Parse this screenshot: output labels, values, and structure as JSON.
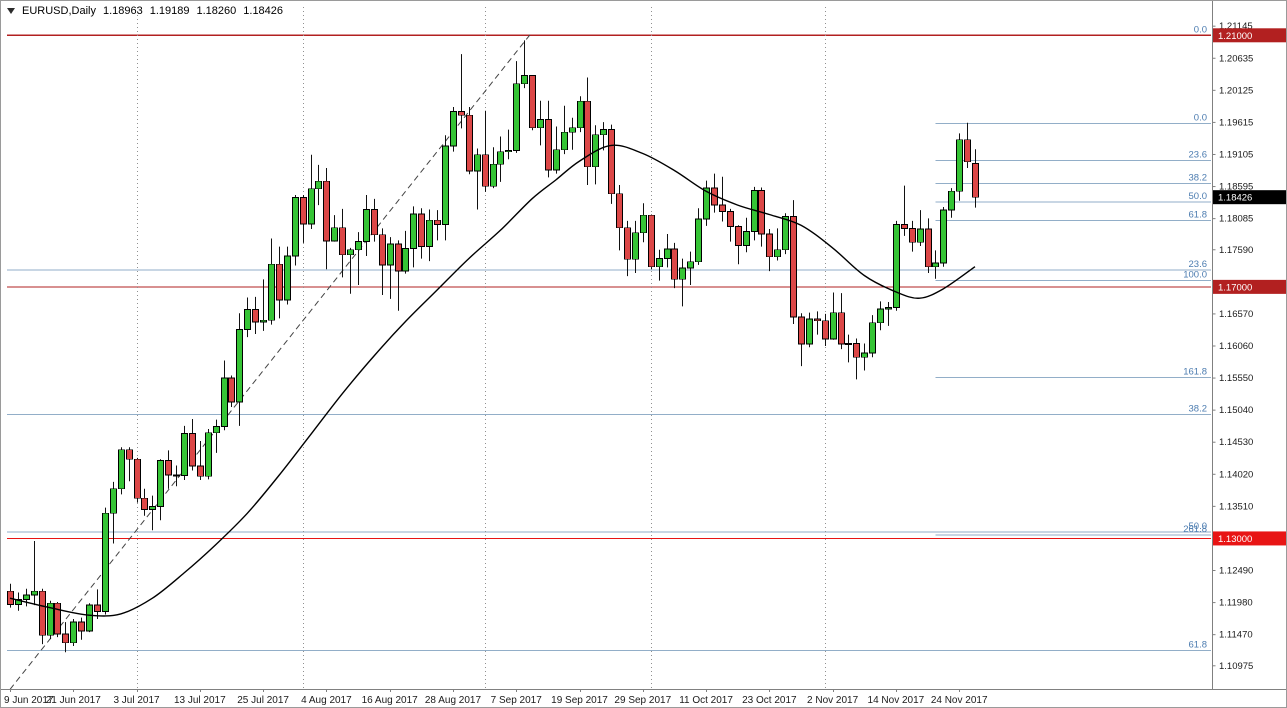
{
  "title": {
    "symbol_period": "EURUSD,Daily",
    "open": "1.18963",
    "high": "1.19189",
    "low": "1.18260",
    "close": "1.18426"
  },
  "colors": {
    "up": "#35C435",
    "down": "#DC4747",
    "wick": "#111111",
    "body_stroke": "#000000",
    "ma": "#000000",
    "fib_line": "#92AEC8",
    "fib_label": "#4C7CB0",
    "trendline": "#444444",
    "separator": "#909090",
    "axis_line": "#808080",
    "axis_text": "#1a1a1a",
    "tag_fg": "#FFFFFF"
  },
  "y_axis": {
    "labels": [
      {
        "text": "1.21145",
        "price": 1.21145
      },
      {
        "text": "1.20635",
        "price": 1.20635
      },
      {
        "text": "1.20125",
        "price": 1.20125
      },
      {
        "text": "1.19615",
        "price": 1.19615
      },
      {
        "text": "1.19105",
        "price": 1.19105
      },
      {
        "text": "1.18595",
        "price": 1.18595
      },
      {
        "text": "1.18085",
        "price": 1.18085
      },
      {
        "text": "1.17590",
        "price": 1.1759
      },
      {
        "text": "1.16570",
        "price": 1.1657
      },
      {
        "text": "1.16060",
        "price": 1.1606
      },
      {
        "text": "1.15550",
        "price": 1.1555
      },
      {
        "text": "1.15040",
        "price": 1.1504
      },
      {
        "text": "1.14530",
        "price": 1.1453
      },
      {
        "text": "1.14020",
        "price": 1.1402
      },
      {
        "text": "1.13510",
        "price": 1.1351
      },
      {
        "text": "1.12490",
        "price": 1.1249
      },
      {
        "text": "1.11980",
        "price": 1.1198
      },
      {
        "text": "1.11470",
        "price": 1.1147
      },
      {
        "text": "1.10975",
        "price": 1.10975
      }
    ]
  },
  "price_tags": [
    {
      "text": "1.21000",
      "price": 1.21,
      "bg": "#B22020"
    },
    {
      "text": "1.18426",
      "price": 1.18426,
      "bg": "#000000"
    },
    {
      "text": "1.17000",
      "price": 1.17,
      "bg": "#B22020"
    },
    {
      "text": "1.13000",
      "price": 1.13,
      "bg": "#E81414"
    }
  ],
  "x_axis": {
    "labels": [
      {
        "text": "9 Jun 2017",
        "index": 0
      },
      {
        "text": "21 Jun 2017",
        "index": 8
      },
      {
        "text": "3 Jul 2017",
        "index": 16
      },
      {
        "text": "13 Jul 2017",
        "index": 24
      },
      {
        "text": "25 Jul 2017",
        "index": 32
      },
      {
        "text": "4 Aug 2017",
        "index": 40
      },
      {
        "text": "16 Aug 2017",
        "index": 48
      },
      {
        "text": "28 Aug 2017",
        "index": 56
      },
      {
        "text": "7 Sep 2017",
        "index": 64
      },
      {
        "text": "19 Sep 2017",
        "index": 72
      },
      {
        "text": "29 Sep 2017",
        "index": 80
      },
      {
        "text": "11 Oct 2017",
        "index": 88
      },
      {
        "text": "23 Oct 2017",
        "index": 96
      },
      {
        "text": "2 Nov 2017",
        "index": 104
      },
      {
        "text": "14 Nov 2017",
        "index": 112
      },
      {
        "text": "24 Nov 2017",
        "index": 120
      }
    ]
  },
  "chart_data": {
    "type": "candlestick",
    "symbol": "EURUSD",
    "timeframe": "Daily",
    "price_scale": {
      "max": 1.2145,
      "min": 1.10606
    },
    "dates": [
      "2017.06.09",
      "2017.06.12",
      "2017.06.13",
      "2017.06.14",
      "2017.06.15",
      "2017.06.16",
      "2017.06.19",
      "2017.06.20",
      "2017.06.21",
      "2017.06.22",
      "2017.06.23",
      "2017.06.26",
      "2017.06.27",
      "2017.06.28",
      "2017.06.29",
      "2017.06.30",
      "2017.07.03",
      "2017.07.04",
      "2017.07.05",
      "2017.07.06",
      "2017.07.07",
      "2017.07.10",
      "2017.07.11",
      "2017.07.12",
      "2017.07.13",
      "2017.07.14",
      "2017.07.17",
      "2017.07.18",
      "2017.07.19",
      "2017.07.20",
      "2017.07.21",
      "2017.07.24",
      "2017.07.25",
      "2017.07.26",
      "2017.07.27",
      "2017.07.28",
      "2017.07.31",
      "2017.08.01",
      "2017.08.02",
      "2017.08.03",
      "2017.08.04",
      "2017.08.07",
      "2017.08.08",
      "2017.08.09",
      "2017.08.10",
      "2017.08.11",
      "2017.08.14",
      "2017.08.15",
      "2017.08.16",
      "2017.08.17",
      "2017.08.18",
      "2017.08.21",
      "2017.08.22",
      "2017.08.23",
      "2017.08.24",
      "2017.08.25",
      "2017.08.28",
      "2017.08.29",
      "2017.08.30",
      "2017.08.31",
      "2017.09.01",
      "2017.09.04",
      "2017.09.05",
      "2017.09.06",
      "2017.09.07",
      "2017.09.08",
      "2017.09.11",
      "2017.09.12",
      "2017.09.13",
      "2017.09.14",
      "2017.09.15",
      "2017.09.18",
      "2017.09.19",
      "2017.09.20",
      "2017.09.21",
      "2017.09.22",
      "2017.09.25",
      "2017.09.26",
      "2017.09.27",
      "2017.09.28",
      "2017.09.29",
      "2017.10.02",
      "2017.10.03",
      "2017.10.04",
      "2017.10.05",
      "2017.10.06",
      "2017.10.09",
      "2017.10.10",
      "2017.10.11",
      "2017.10.12",
      "2017.10.13",
      "2017.10.16",
      "2017.10.17",
      "2017.10.18",
      "2017.10.19",
      "2017.10.20",
      "2017.10.23",
      "2017.10.24",
      "2017.10.25",
      "2017.10.26",
      "2017.10.27",
      "2017.10.30",
      "2017.10.31",
      "2017.11.01",
      "2017.11.02",
      "2017.11.03",
      "2017.11.06",
      "2017.11.07",
      "2017.11.08",
      "2017.11.09",
      "2017.11.10",
      "2017.11.13",
      "2017.11.14",
      "2017.11.15",
      "2017.11.16",
      "2017.11.17",
      "2017.11.20",
      "2017.11.21",
      "2017.11.22",
      "2017.11.23",
      "2017.11.24",
      "2017.11.27",
      "2017.11.28"
    ],
    "ohlc": [
      [
        1.1216,
        1.1228,
        1.119,
        1.1195
      ],
      [
        1.1195,
        1.1214,
        1.1185,
        1.1203
      ],
      [
        1.1203,
        1.122,
        1.1192,
        1.121
      ],
      [
        1.121,
        1.1296,
        1.1194,
        1.1216
      ],
      [
        1.1216,
        1.122,
        1.1132,
        1.1146
      ],
      [
        1.1146,
        1.1201,
        1.114,
        1.1197
      ],
      [
        1.1197,
        1.1199,
        1.1143,
        1.1148
      ],
      [
        1.1148,
        1.1167,
        1.1119,
        1.1134
      ],
      [
        1.1134,
        1.1172,
        1.1129,
        1.1167
      ],
      [
        1.1167,
        1.1174,
        1.1139,
        1.1153
      ],
      [
        1.1153,
        1.1197,
        1.1151,
        1.1194
      ],
      [
        1.1194,
        1.1219,
        1.1172,
        1.1184
      ],
      [
        1.1184,
        1.1349,
        1.1179,
        1.134
      ],
      [
        1.134,
        1.139,
        1.1292,
        1.1379
      ],
      [
        1.1379,
        1.1445,
        1.137,
        1.1441
      ],
      [
        1.1441,
        1.1445,
        1.1391,
        1.1426
      ],
      [
        1.1426,
        1.1428,
        1.1357,
        1.1364
      ],
      [
        1.1364,
        1.1379,
        1.1336,
        1.1346
      ],
      [
        1.1346,
        1.1368,
        1.1313,
        1.1351
      ],
      [
        1.1351,
        1.1426,
        1.1329,
        1.1424
      ],
      [
        1.1424,
        1.144,
        1.1379,
        1.1401
      ],
      [
        1.1401,
        1.1416,
        1.1383,
        1.14
      ],
      [
        1.14,
        1.1479,
        1.1393,
        1.1467
      ],
      [
        1.1467,
        1.149,
        1.1408,
        1.1415
      ],
      [
        1.1415,
        1.1455,
        1.1393,
        1.1399
      ],
      [
        1.1399,
        1.1474,
        1.1394,
        1.1468
      ],
      [
        1.1468,
        1.1489,
        1.1436,
        1.1478
      ],
      [
        1.1478,
        1.1583,
        1.1472,
        1.1555
      ],
      [
        1.1555,
        1.1559,
        1.1509,
        1.1517
      ],
      [
        1.1517,
        1.1658,
        1.1479,
        1.1632
      ],
      [
        1.1632,
        1.1683,
        1.162,
        1.1664
      ],
      [
        1.1664,
        1.1684,
        1.1625,
        1.1644
      ],
      [
        1.1644,
        1.1712,
        1.163,
        1.1647
      ],
      [
        1.1647,
        1.1777,
        1.164,
        1.1736
      ],
      [
        1.1736,
        1.1764,
        1.165,
        1.1679
      ],
      [
        1.1679,
        1.1764,
        1.1672,
        1.1749
      ],
      [
        1.1749,
        1.1846,
        1.1734,
        1.1842
      ],
      [
        1.1842,
        1.1846,
        1.177,
        1.18
      ],
      [
        1.18,
        1.191,
        1.1792,
        1.1856
      ],
      [
        1.1856,
        1.1894,
        1.183,
        1.1868
      ],
      [
        1.1868,
        1.1889,
        1.1728,
        1.1773
      ],
      [
        1.1773,
        1.1814,
        1.1772,
        1.1794
      ],
      [
        1.1794,
        1.1824,
        1.1715,
        1.1751
      ],
      [
        1.1751,
        1.1762,
        1.1689,
        1.1759
      ],
      [
        1.1759,
        1.1787,
        1.1703,
        1.1772
      ],
      [
        1.1772,
        1.1846,
        1.1749,
        1.1823
      ],
      [
        1.1823,
        1.184,
        1.1772,
        1.1783
      ],
      [
        1.1783,
        1.1793,
        1.1687,
        1.1735
      ],
      [
        1.1735,
        1.1779,
        1.1681,
        1.1768
      ],
      [
        1.1768,
        1.1774,
        1.1662,
        1.1725
      ],
      [
        1.1725,
        1.1789,
        1.1721,
        1.1761
      ],
      [
        1.1761,
        1.1828,
        1.1731,
        1.1816
      ],
      [
        1.1816,
        1.1825,
        1.1745,
        1.1764
      ],
      [
        1.1764,
        1.1823,
        1.1741,
        1.1806
      ],
      [
        1.1806,
        1.1822,
        1.1774,
        1.1799
      ],
      [
        1.1799,
        1.1941,
        1.1774,
        1.1924
      ],
      [
        1.1924,
        1.1986,
        1.1915,
        1.1979
      ],
      [
        1.1979,
        1.207,
        1.1952,
        1.1973
      ],
      [
        1.1973,
        1.1986,
        1.1879,
        1.1884
      ],
      [
        1.1884,
        1.192,
        1.1823,
        1.191
      ],
      [
        1.191,
        1.198,
        1.1851,
        1.186
      ],
      [
        1.186,
        1.1922,
        1.1857,
        1.1895
      ],
      [
        1.1895,
        1.1939,
        1.1867,
        1.1915
      ],
      [
        1.1915,
        1.195,
        1.1903,
        1.1917
      ],
      [
        1.1917,
        1.2059,
        1.1913,
        1.2023
      ],
      [
        1.2023,
        1.2092,
        1.2016,
        1.2036
      ],
      [
        1.2036,
        1.2036,
        1.1949,
        1.1953
      ],
      [
        1.1953,
        1.1996,
        1.1925,
        1.1966
      ],
      [
        1.1966,
        1.1996,
        1.1874,
        1.1886
      ],
      [
        1.1886,
        1.1955,
        1.188,
        1.1918
      ],
      [
        1.1918,
        1.1988,
        1.1911,
        1.1946
      ],
      [
        1.1946,
        1.1969,
        1.1918,
        1.1953
      ],
      [
        1.1953,
        1.2003,
        1.1946,
        1.1995
      ],
      [
        1.1995,
        1.2033,
        1.1862,
        1.1891
      ],
      [
        1.1891,
        1.1957,
        1.1863,
        1.1942
      ],
      [
        1.1942,
        1.1962,
        1.1917,
        1.195
      ],
      [
        1.195,
        1.1958,
        1.1832,
        1.1848
      ],
      [
        1.1848,
        1.1862,
        1.1758,
        1.1794
      ],
      [
        1.1794,
        1.1805,
        1.1717,
        1.1744
      ],
      [
        1.1744,
        1.1805,
        1.1722,
        1.1786
      ],
      [
        1.1786,
        1.1833,
        1.1771,
        1.1814
      ],
      [
        1.1814,
        1.1815,
        1.1728,
        1.1732
      ],
      [
        1.1732,
        1.1759,
        1.171,
        1.1745
      ],
      [
        1.1745,
        1.1784,
        1.1731,
        1.176
      ],
      [
        1.176,
        1.177,
        1.1698,
        1.1712
      ],
      [
        1.1712,
        1.1745,
        1.1669,
        1.173
      ],
      [
        1.173,
        1.1756,
        1.1703,
        1.174
      ],
      [
        1.174,
        1.1825,
        1.1735,
        1.1808
      ],
      [
        1.1808,
        1.1869,
        1.1797,
        1.1857
      ],
      [
        1.1857,
        1.188,
        1.1818,
        1.183
      ],
      [
        1.183,
        1.1875,
        1.1804,
        1.182
      ],
      [
        1.182,
        1.1824,
        1.1772,
        1.1796
      ],
      [
        1.1796,
        1.1798,
        1.1736,
        1.1766
      ],
      [
        1.1766,
        1.181,
        1.1755,
        1.1788
      ],
      [
        1.1788,
        1.1859,
        1.1774,
        1.1853
      ],
      [
        1.1853,
        1.1858,
        1.1764,
        1.1784
      ],
      [
        1.1784,
        1.1792,
        1.1725,
        1.1748
      ],
      [
        1.1748,
        1.1793,
        1.1742,
        1.1759
      ],
      [
        1.1759,
        1.1817,
        1.1752,
        1.1812
      ],
      [
        1.1812,
        1.1838,
        1.1641,
        1.1652
      ],
      [
        1.1652,
        1.1658,
        1.1574,
        1.1609
      ],
      [
        1.1609,
        1.1659,
        1.1604,
        1.1649
      ],
      [
        1.1649,
        1.1661,
        1.1624,
        1.1646
      ],
      [
        1.1646,
        1.1657,
        1.1606,
        1.1617
      ],
      [
        1.1617,
        1.1691,
        1.1616,
        1.1659
      ],
      [
        1.1659,
        1.169,
        1.1601,
        1.1609
      ],
      [
        1.1609,
        1.1624,
        1.158,
        1.161
      ],
      [
        1.161,
        1.1618,
        1.1553,
        1.1588
      ],
      [
        1.1588,
        1.161,
        1.1567,
        1.1595
      ],
      [
        1.1595,
        1.1655,
        1.1588,
        1.1643
      ],
      [
        1.1643,
        1.1677,
        1.1631,
        1.1665
      ],
      [
        1.1665,
        1.1676,
        1.1638,
        1.1667
      ],
      [
        1.1667,
        1.1805,
        1.1662,
        1.1799
      ],
      [
        1.1799,
        1.1861,
        1.1781,
        1.1793
      ],
      [
        1.1793,
        1.1805,
        1.1756,
        1.1771
      ],
      [
        1.1771,
        1.1822,
        1.1765,
        1.1792
      ],
      [
        1.1792,
        1.1809,
        1.1722,
        1.1732
      ],
      [
        1.1732,
        1.1758,
        1.1713,
        1.1738
      ],
      [
        1.1738,
        1.1827,
        1.1732,
        1.1822
      ],
      [
        1.1822,
        1.1857,
        1.181,
        1.1852
      ],
      [
        1.1852,
        1.1944,
        1.1837,
        1.1934
      ],
      [
        1.1934,
        1.1961,
        1.1889,
        1.1899
      ],
      [
        1.18963,
        1.19189,
        1.1826,
        1.18426
      ]
    ],
    "moving_average": {
      "name": "SMA",
      "points": [
        [
          0,
          1.1205
        ],
        [
          5,
          1.119
        ],
        [
          10,
          1.1178
        ],
        [
          14,
          1.118
        ],
        [
          18,
          1.1205
        ],
        [
          22,
          1.1245
        ],
        [
          26,
          1.129
        ],
        [
          30,
          1.134
        ],
        [
          34,
          1.14
        ],
        [
          38,
          1.1465
        ],
        [
          42,
          1.153
        ],
        [
          46,
          1.159
        ],
        [
          50,
          1.1645
        ],
        [
          54,
          1.1695
        ],
        [
          58,
          1.1745
        ],
        [
          62,
          1.179
        ],
        [
          66,
          1.184
        ],
        [
          69,
          1.187
        ],
        [
          72,
          1.19
        ],
        [
          76,
          1.1925
        ],
        [
          80,
          1.1912
        ],
        [
          84,
          1.1885
        ],
        [
          88,
          1.1852
        ],
        [
          92,
          1.183
        ],
        [
          96,
          1.1815
        ],
        [
          100,
          1.1798
        ],
        [
          104,
          1.1762
        ],
        [
          108,
          1.1718
        ],
        [
          112,
          1.1692
        ],
        [
          115,
          1.1682
        ],
        [
          118,
          1.1697
        ],
        [
          122,
          1.1732
        ]
      ]
    },
    "trendline": {
      "style": "dashed",
      "from": {
        "index": 0,
        "price": 1.106
      },
      "to": {
        "index": 66,
        "price": 1.2105
      }
    },
    "horizontal_lines": [
      {
        "price": 1.21,
        "color": "#B22020"
      },
      {
        "price": 1.17,
        "color": "#B22020"
      },
      {
        "price": 1.13,
        "color": "#E81414"
      }
    ],
    "fibonacci": [
      {
        "name": "fibo-major",
        "full_width": true,
        "levels": [
          {
            "label": "0.0",
            "price": 1.21
          },
          {
            "label": "23.6",
            "price": 1.1727
          },
          {
            "label": "38.2",
            "price": 1.1497
          },
          {
            "label": "50.0",
            "price": 1.131
          },
          {
            "label": "61.8",
            "price": 1.1122
          }
        ]
      },
      {
        "name": "fibo-minor",
        "start_index": 117,
        "levels": [
          {
            "label": "0.0",
            "price": 1.196
          },
          {
            "label": "23.6",
            "price": 1.1901
          },
          {
            "label": "38.2",
            "price": 1.18645
          },
          {
            "label": "50.0",
            "price": 1.1835
          },
          {
            "label": "61.8",
            "price": 1.18055
          },
          {
            "label": "100.0",
            "price": 1.171
          },
          {
            "label": "161.8",
            "price": 1.15555
          },
          {
            "label": "261.8",
            "price": 1.13055
          }
        ]
      }
    ],
    "month_separators": [
      {
        "index": 16
      },
      {
        "index": 37
      },
      {
        "index": 60
      },
      {
        "index": 81
      },
      {
        "index": 103
      }
    ]
  }
}
